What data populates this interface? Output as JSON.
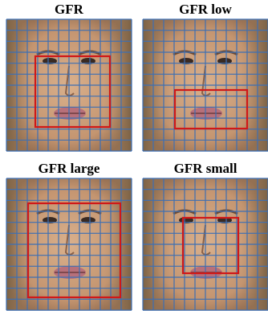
{
  "panels": [
    {
      "title": "GFR"
    },
    {
      "title": "GFR low"
    },
    {
      "title": "GFR large"
    },
    {
      "title": "GFR small"
    }
  ]
}
